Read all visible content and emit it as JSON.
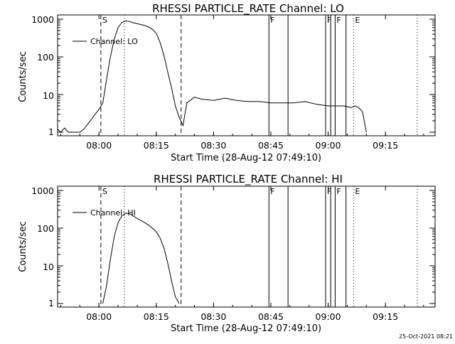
{
  "chart_data": [
    {
      "type": "line",
      "title": "RHESSI PARTICLE_RATE Channel: LO",
      "ylabel": "Counts/sec",
      "xlabel": "Start Time (28-Aug-12 07:49:10)",
      "x_ticks": [
        "08:00",
        "08:15",
        "08:30",
        "08:45",
        "09:00",
        "09:15"
      ],
      "y_ticks": [
        "1",
        "10",
        "100",
        "1000"
      ],
      "y_scale": "log",
      "ylim": [
        1,
        1200
      ],
      "xlim": [
        "07:49:10",
        "09:28"
      ],
      "legend": "Channel: LO",
      "series": [
        {
          "name": "Channel: LO",
          "x": [
            "07:49:10",
            "07:50",
            "07:51",
            "07:52",
            "07:53",
            "07:54",
            "07:55",
            "07:56",
            "07:57",
            "07:58",
            "07:59",
            "08:00",
            "08:01",
            "08:02",
            "08:03",
            "08:04",
            "08:05",
            "08:06",
            "08:07",
            "08:08",
            "08:09",
            "08:10",
            "08:11",
            "08:12",
            "08:13",
            "08:14",
            "08:15",
            "08:16",
            "08:17",
            "08:18",
            "08:19",
            "08:20",
            "08:21",
            "08:22",
            "08:23",
            "08:25",
            "08:27",
            "08:30",
            "08:33",
            "08:36",
            "08:39",
            "08:42",
            "08:45",
            "08:48",
            "08:51",
            "08:54",
            "08:57",
            "09:00",
            "09:02",
            "09:04",
            "09:06",
            "09:07",
            "09:08",
            "09:09",
            "09:10"
          ],
          "values": [
            1.2,
            1,
            1.3,
            1,
            1,
            1,
            1,
            1.2,
            1.6,
            2.2,
            3,
            4,
            6,
            25,
            100,
            300,
            600,
            820,
            900,
            870,
            800,
            760,
            720,
            680,
            620,
            540,
            420,
            240,
            110,
            40,
            15,
            5,
            2.5,
            1.5,
            6,
            8.5,
            7.5,
            7,
            8,
            7,
            6.5,
            6.5,
            6,
            6,
            6,
            6.5,
            5.5,
            5,
            5,
            5,
            4.5,
            5,
            4.5,
            3.5,
            1
          ]
        }
      ],
      "markers": [
        {
          "time": "08:00:30",
          "label": "S",
          "style": "dashed"
        },
        {
          "time": "08:06:40",
          "label": "",
          "style": "dotted"
        },
        {
          "time": "08:21:30",
          "label": "",
          "style": "dashed"
        },
        {
          "time": "08:44:30",
          "label": "F",
          "style": "solid"
        },
        {
          "time": "08:49:30",
          "label": "",
          "style": "solid"
        },
        {
          "time": "08:59:20",
          "label": "F",
          "style": "solid"
        },
        {
          "time": "09:00:40",
          "label": "",
          "style": "solid"
        },
        {
          "time": "09:01:50",
          "label": "F",
          "style": "solid"
        },
        {
          "time": "09:04:40",
          "label": "",
          "style": "solid"
        },
        {
          "time": "09:06:40",
          "label": "E",
          "style": "dotted"
        },
        {
          "time": "09:23:20",
          "label": "",
          "style": "dotted"
        }
      ]
    },
    {
      "type": "line",
      "title": "RHESSI PARTICLE_RATE Channel: HI",
      "ylabel": "Counts/sec",
      "xlabel": "Start Time (28-Aug-12 07:49:10)",
      "x_ticks": [
        "08:00",
        "08:15",
        "08:30",
        "08:45",
        "09:00",
        "09:15"
      ],
      "y_ticks": [
        "1",
        "10",
        "100",
        "1000"
      ],
      "y_scale": "log",
      "ylim": [
        1,
        1200
      ],
      "xlim": [
        "07:49:10",
        "09:28"
      ],
      "legend": "Channel: HI",
      "series": [
        {
          "name": "Channel: HI",
          "x": [
            "08:01",
            "08:02",
            "08:03",
            "08:04",
            "08:05",
            "08:06",
            "08:07",
            "08:08",
            "08:09",
            "08:10",
            "08:11",
            "08:12",
            "08:13",
            "08:14",
            "08:15",
            "08:16",
            "08:17",
            "08:18",
            "08:19",
            "08:20",
            "08:21"
          ],
          "values": [
            1,
            3,
            15,
            60,
            140,
            210,
            250,
            240,
            210,
            180,
            160,
            140,
            120,
            100,
            80,
            55,
            30,
            12,
            4,
            1.5,
            1
          ]
        }
      ],
      "markers": [
        {
          "time": "08:00:30",
          "label": "S",
          "style": "dashed"
        },
        {
          "time": "08:06:40",
          "label": "",
          "style": "dotted"
        },
        {
          "time": "08:21:30",
          "label": "",
          "style": "dashed"
        },
        {
          "time": "08:44:30",
          "label": "F",
          "style": "solid"
        },
        {
          "time": "08:49:30",
          "label": "",
          "style": "solid"
        },
        {
          "time": "08:59:20",
          "label": "F",
          "style": "solid"
        },
        {
          "time": "09:00:40",
          "label": "",
          "style": "solid"
        },
        {
          "time": "09:01:50",
          "label": "F",
          "style": "solid"
        },
        {
          "time": "09:04:40",
          "label": "",
          "style": "solid"
        },
        {
          "time": "09:06:40",
          "label": "E",
          "style": "dotted"
        },
        {
          "time": "09:23:20",
          "label": "",
          "style": "dotted"
        }
      ]
    }
  ],
  "footer": {
    "timestamp": "25-Oct-2021 08:21"
  }
}
